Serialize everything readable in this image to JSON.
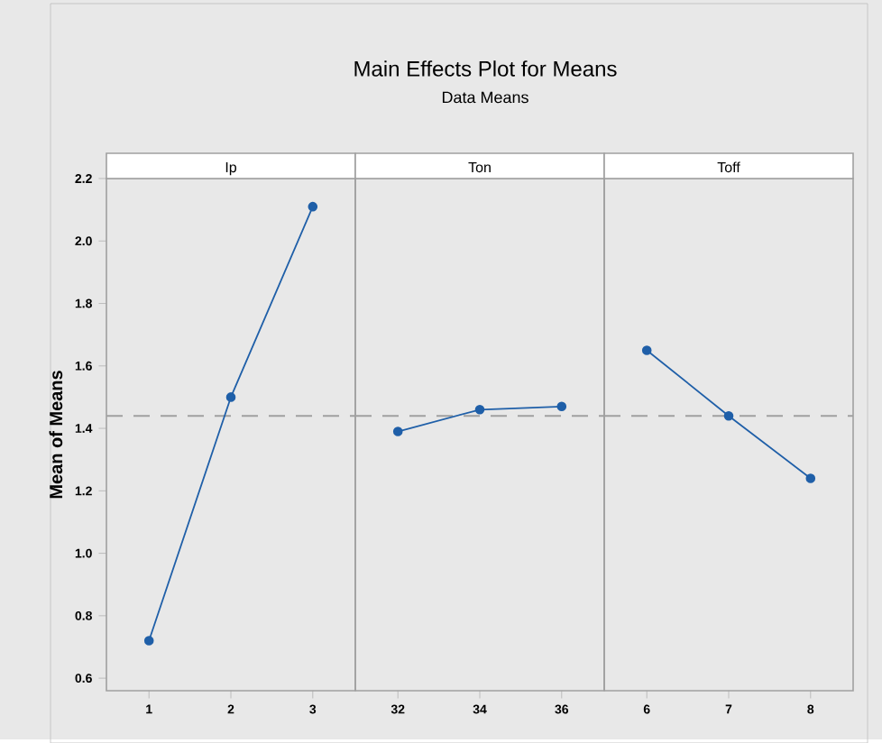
{
  "chart_data": [
    {
      "type": "line",
      "title": "Ip",
      "ylabel": "Mean of Means",
      "annotations": [
        "Main Effects Plot for Means",
        "Data Means"
      ],
      "categories": [
        "1",
        "2",
        "3"
      ],
      "series": [
        {
          "color": "#1f5fa8",
          "values": [
            0.72,
            1.5,
            2.11
          ]
        }
      ],
      "ylim": [
        0.56,
        2.2
      ],
      "yticks": [
        0.6,
        0.8,
        {
          "value": 1,
          "label": "1.0"
        },
        1.2,
        1.4,
        1.6,
        1.8,
        {
          "value": 2,
          "label": "2.0"
        },
        2.2
      ],
      "ref_lines": [
        {
          "axis": "y",
          "value": 1.44,
          "color": "#a0a0a0",
          "line_style": "dashed"
        }
      ],
      "marker": "circle",
      "line_style": "solid",
      "grid": false
    },
    {
      "type": "line",
      "title": "Ton",
      "categories": [
        "32",
        "34",
        "36"
      ],
      "series": [
        {
          "color": "#1f5fa8",
          "values": [
            1.39,
            1.46,
            1.47
          ]
        }
      ],
      "ylim": [
        0.56,
        2.2
      ],
      "tick_labels": "x",
      "ref_lines": [
        {
          "axis": "y",
          "value": 1.44,
          "color": "#a0a0a0",
          "line_style": "dashed"
        }
      ],
      "marker": "circle",
      "line_style": "solid",
      "grid": false
    },
    {
      "type": "line",
      "title": "Toff",
      "categories": [
        "6",
        "7",
        "8"
      ],
      "series": [
        {
          "color": "#1f5fa8",
          "values": [
            1.65,
            1.44,
            1.24
          ]
        }
      ],
      "ylim": [
        0.56,
        2.2
      ],
      "tick_labels": "x",
      "ref_lines": [
        {
          "axis": "y",
          "value": 1.44,
          "color": "#a0a0a0",
          "line_style": "dashed"
        }
      ],
      "marker": "circle",
      "line_style": "solid",
      "grid": false
    }
  ]
}
